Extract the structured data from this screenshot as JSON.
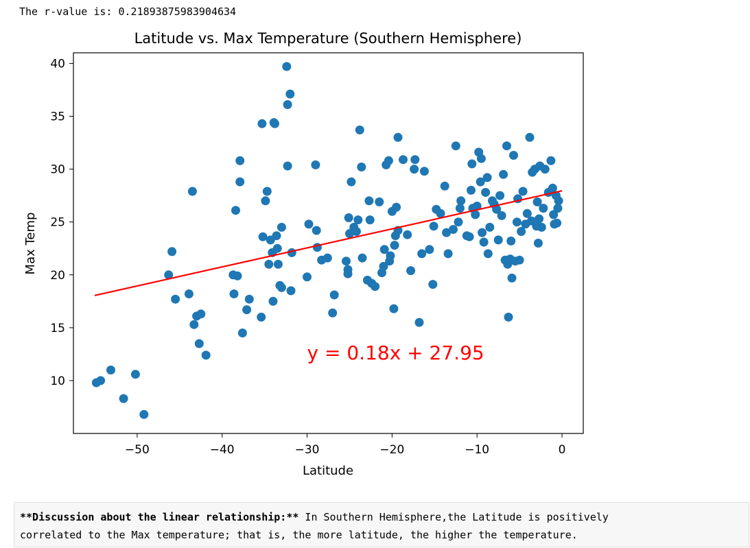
{
  "output": {
    "rvalue_line": "The r-value is: 0.21893875983904634"
  },
  "chart_data": {
    "type": "scatter",
    "title": "Latitude vs. Max Temperature (Southern Hemisphere)",
    "xlabel": "Latitude",
    "ylabel": "Max Temp",
    "xlim": [
      -57.5,
      2.5
    ],
    "ylim": [
      5,
      41
    ],
    "xticks": [
      -50,
      -40,
      -30,
      -20,
      -10,
      0
    ],
    "yticks": [
      10,
      15,
      20,
      25,
      30,
      35,
      40
    ],
    "grid": false,
    "point_color": "#1f77b4",
    "line_color": "#ff0000",
    "regression": {
      "slope": 0.18,
      "intercept": 27.95,
      "x_range": [
        -55,
        0
      ],
      "equation": "y = 0.18x + 27.95",
      "equation_pos": [
        -30,
        12
      ]
    },
    "points": [
      [
        -54.8,
        9.8
      ],
      [
        -54.3,
        10.0
      ],
      [
        -53.1,
        11.0
      ],
      [
        -51.6,
        8.3
      ],
      [
        -50.2,
        10.6
      ],
      [
        -49.2,
        6.8
      ],
      [
        -46.3,
        20.0
      ],
      [
        -45.9,
        22.2
      ],
      [
        -45.5,
        17.7
      ],
      [
        -43.9,
        18.2
      ],
      [
        -43.5,
        27.9
      ],
      [
        -43.3,
        15.3
      ],
      [
        -43.0,
        16.1
      ],
      [
        -42.7,
        13.5
      ],
      [
        -42.5,
        16.3
      ],
      [
        -41.9,
        12.4
      ],
      [
        -38.7,
        20.0
      ],
      [
        -38.6,
        18.2
      ],
      [
        -38.4,
        26.1
      ],
      [
        -38.2,
        19.9
      ],
      [
        -37.9,
        30.8
      ],
      [
        -37.9,
        28.8
      ],
      [
        -37.6,
        14.5
      ],
      [
        -37.1,
        16.7
      ],
      [
        -36.8,
        17.7
      ],
      [
        -35.4,
        16.0
      ],
      [
        -35.3,
        34.3
      ],
      [
        -35.2,
        23.6
      ],
      [
        -34.9,
        27.0
      ],
      [
        -34.7,
        27.9
      ],
      [
        -34.5,
        21.0
      ],
      [
        -34.3,
        23.3
      ],
      [
        -34.1,
        22.1
      ],
      [
        -34.0,
        17.5
      ],
      [
        -33.9,
        34.4
      ],
      [
        -33.8,
        34.3
      ],
      [
        -33.6,
        23.7
      ],
      [
        -33.5,
        22.5
      ],
      [
        -33.4,
        21.0
      ],
      [
        -33.2,
        19.0
      ],
      [
        -33.0,
        24.5
      ],
      [
        -33.0,
        18.8
      ],
      [
        -32.4,
        39.7
      ],
      [
        -32.3,
        36.1
      ],
      [
        -32.3,
        30.3
      ],
      [
        -32.0,
        37.1
      ],
      [
        -31.9,
        18.5
      ],
      [
        -31.8,
        22.1
      ],
      [
        -30.0,
        19.8
      ],
      [
        -29.8,
        24.8
      ],
      [
        -29.0,
        30.4
      ],
      [
        -28.9,
        24.2
      ],
      [
        -28.8,
        22.6
      ],
      [
        -28.3,
        21.4
      ],
      [
        -27.6,
        21.6
      ],
      [
        -27.0,
        16.4
      ],
      [
        -26.8,
        18.1
      ],
      [
        -25.4,
        21.3
      ],
      [
        -25.2,
        20.5
      ],
      [
        -25.2,
        20.1
      ],
      [
        -25.1,
        25.4
      ],
      [
        -25.0,
        23.9
      ],
      [
        -24.8,
        28.8
      ],
      [
        -24.5,
        24.5
      ],
      [
        -24.2,
        24.1
      ],
      [
        -24.0,
        25.2
      ],
      [
        -23.8,
        33.7
      ],
      [
        -23.6,
        30.2
      ],
      [
        -23.5,
        21.6
      ],
      [
        -22.9,
        19.5
      ],
      [
        -22.7,
        27.0
      ],
      [
        -22.6,
        25.2
      ],
      [
        -22.4,
        19.2
      ],
      [
        -22.0,
        18.9
      ],
      [
        -21.5,
        26.9
      ],
      [
        -21.2,
        20.2
      ],
      [
        -21.0,
        20.8
      ],
      [
        -20.9,
        22.4
      ],
      [
        -20.7,
        30.4
      ],
      [
        -20.4,
        30.8
      ],
      [
        -20.3,
        21.3
      ],
      [
        -20.2,
        21.8
      ],
      [
        -20.0,
        26.0
      ],
      [
        -19.8,
        16.8
      ],
      [
        -19.7,
        22.8
      ],
      [
        -19.6,
        23.7
      ],
      [
        -19.5,
        26.4
      ],
      [
        -19.3,
        24.2
      ],
      [
        -19.3,
        33.0
      ],
      [
        -18.7,
        30.9
      ],
      [
        -18.2,
        23.8
      ],
      [
        -17.8,
        20.4
      ],
      [
        -17.4,
        30.0
      ],
      [
        -17.3,
        30.9
      ],
      [
        -16.8,
        15.5
      ],
      [
        -16.5,
        22.0
      ],
      [
        -16.2,
        29.8
      ],
      [
        -15.6,
        22.4
      ],
      [
        -15.2,
        19.1
      ],
      [
        -15.1,
        24.6
      ],
      [
        -14.8,
        26.2
      ],
      [
        -14.3,
        25.8
      ],
      [
        -13.8,
        28.4
      ],
      [
        -13.6,
        24.0
      ],
      [
        -13.4,
        22.0
      ],
      [
        -12.8,
        24.3
      ],
      [
        -12.5,
        32.2
      ],
      [
        -12.2,
        25.0
      ],
      [
        -12.0,
        26.3
      ],
      [
        -11.9,
        27.0
      ],
      [
        -11.2,
        23.7
      ],
      [
        -10.9,
        23.6
      ],
      [
        -10.7,
        28.0
      ],
      [
        -10.6,
        30.5
      ],
      [
        -10.5,
        26.3
      ],
      [
        -10.2,
        25.7
      ],
      [
        -10.0,
        26.5
      ],
      [
        -9.8,
        31.6
      ],
      [
        -9.6,
        28.8
      ],
      [
        -9.5,
        31.0
      ],
      [
        -9.4,
        24.0
      ],
      [
        -9.2,
        23.1
      ],
      [
        -9.0,
        27.8
      ],
      [
        -8.8,
        29.2
      ],
      [
        -8.7,
        22.0
      ],
      [
        -8.5,
        24.5
      ],
      [
        -8.2,
        27.0
      ],
      [
        -8.0,
        26.7
      ],
      [
        -7.7,
        26.2
      ],
      [
        -7.5,
        23.3
      ],
      [
        -7.3,
        27.5
      ],
      [
        -7.1,
        25.6
      ],
      [
        -6.9,
        29.5
      ],
      [
        -6.7,
        21.4
      ],
      [
        -6.5,
        32.2
      ],
      [
        -6.4,
        21.0
      ],
      [
        -6.3,
        16.0
      ],
      [
        -6.1,
        21.5
      ],
      [
        -6.0,
        23.2
      ],
      [
        -5.9,
        19.7
      ],
      [
        -5.7,
        31.3
      ],
      [
        -5.5,
        21.3
      ],
      [
        -5.3,
        25.0
      ],
      [
        -5.2,
        27.2
      ],
      [
        -5.0,
        21.4
      ],
      [
        -4.8,
        24.1
      ],
      [
        -4.6,
        27.9
      ],
      [
        -4.3,
        24.8
      ],
      [
        -4.1,
        25.8
      ],
      [
        -3.8,
        33.0
      ],
      [
        -3.6,
        25.1
      ],
      [
        -3.5,
        29.7
      ],
      [
        -3.2,
        30.0
      ],
      [
        -3.0,
        24.6
      ],
      [
        -2.9,
        26.9
      ],
      [
        -2.8,
        23.0
      ],
      [
        -2.7,
        25.3
      ],
      [
        -2.6,
        30.3
      ],
      [
        -2.4,
        24.5
      ],
      [
        -2.2,
        26.3
      ],
      [
        -2.0,
        30.0
      ],
      [
        -1.6,
        27.8
      ],
      [
        -1.3,
        30.8
      ],
      [
        -1.1,
        28.2
      ],
      [
        -1.0,
        25.7
      ],
      [
        -0.9,
        24.8
      ],
      [
        -0.7,
        27.5
      ],
      [
        -0.6,
        24.9
      ],
      [
        -0.5,
        26.3
      ],
      [
        -0.4,
        27.0
      ]
    ]
  },
  "discussion": {
    "bold": "**Discussion about the linear relationship:**",
    "line1_rest": " In Southern Hemisphere,the Latitude is positively",
    "line2": "correlated to the Max temperature; that is, the more latitude, the higher the temperature."
  }
}
